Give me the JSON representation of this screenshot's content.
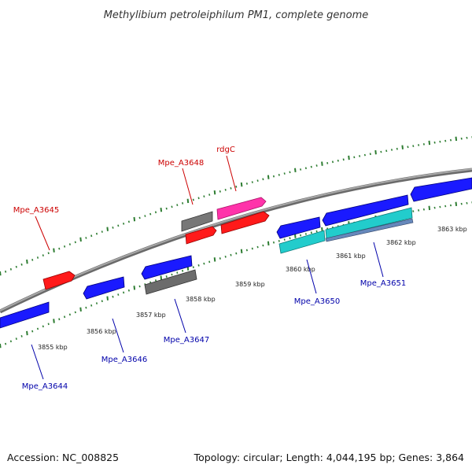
{
  "title": "Methylibium petroleiphilum PM1, complete genome",
  "footer": {
    "accession": "Accession: NC_008825",
    "summary": "Topology: circular; Length: 4,044,195 bp; Genes: 3,864"
  },
  "colors": {
    "backbone": "#8c8c8c",
    "tick": "#2e7d32",
    "forward_gene": "#ff1a1a",
    "reverse_gene": "#1a1aff",
    "pseudo_gene": "#707070",
    "rna_gene": "#ff33aa",
    "cds_cyan": "#22cccc",
    "cds_steel": "#6688bb",
    "forward_label": "#cc0000",
    "reverse_label": "#0000aa"
  },
  "ruler": {
    "unit": "kbp",
    "ticks": [
      {
        "value": 3855,
        "label": "3855 kbp"
      },
      {
        "value": 3856,
        "label": "3856 kbp"
      },
      {
        "value": 3857,
        "label": "3857 kbp"
      },
      {
        "value": 3858,
        "label": "3858 kbp"
      },
      {
        "value": 3859,
        "label": "3859 kbp"
      },
      {
        "value": 3860,
        "label": "3860 kbp"
      },
      {
        "value": 3861,
        "label": "3861 kbp"
      },
      {
        "value": 3862,
        "label": "3862 kbp"
      },
      {
        "value": 3863,
        "label": "3863 kbp"
      }
    ]
  },
  "labels": [
    {
      "text": "Mpe_A3645",
      "strand": "forward"
    },
    {
      "text": "Mpe_A3648",
      "strand": "forward"
    },
    {
      "text": "rdgC",
      "strand": "forward"
    },
    {
      "text": "Mpe_A3644",
      "strand": "reverse"
    },
    {
      "text": "Mpe_A3646",
      "strand": "reverse"
    },
    {
      "text": "Mpe_A3647",
      "strand": "reverse"
    },
    {
      "text": "Mpe_A3650",
      "strand": "reverse"
    },
    {
      "text": "Mpe_A3651",
      "strand": "reverse"
    }
  ]
}
